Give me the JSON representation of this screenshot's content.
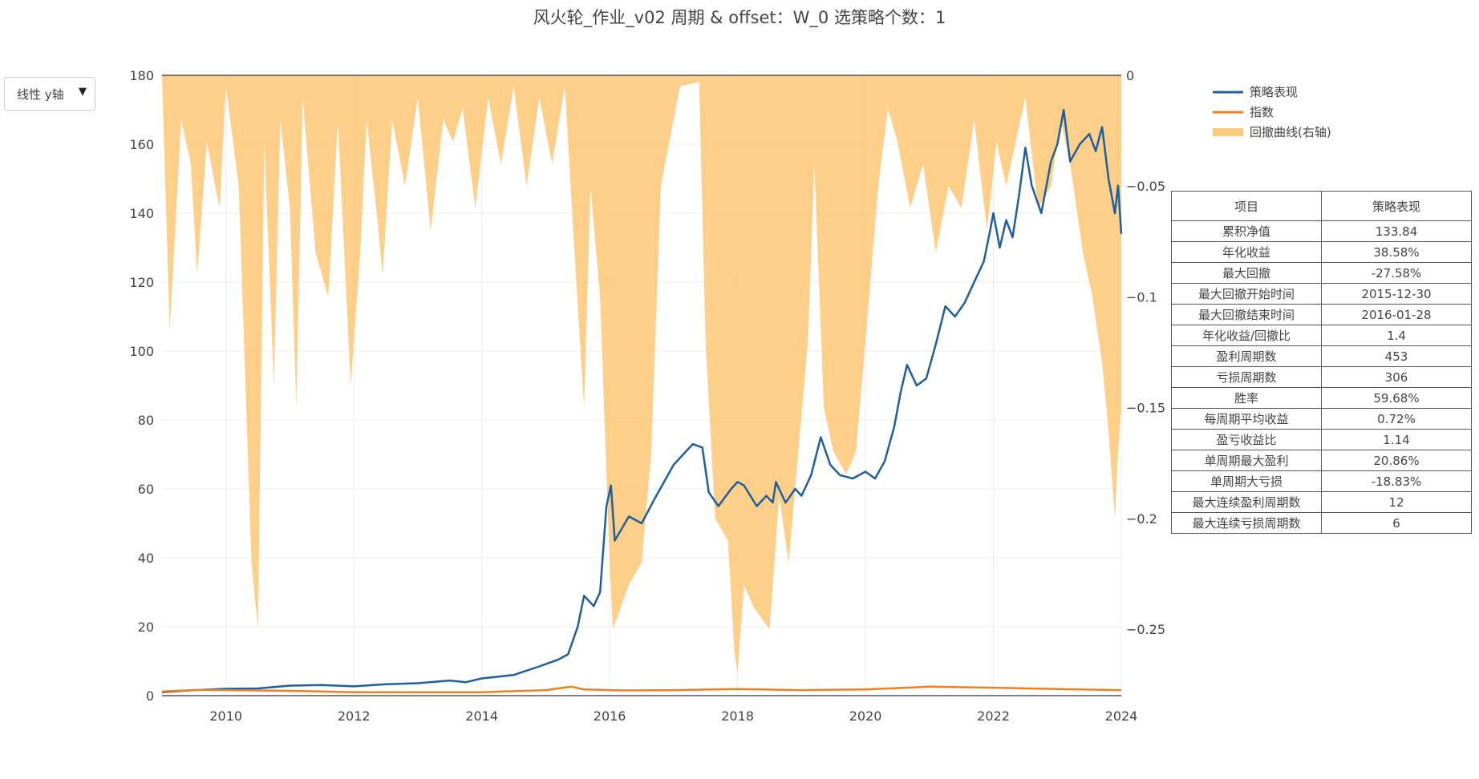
{
  "title": "风火轮_作业_v02 周期 & offset：W_0 选策略个数：1",
  "controls": {
    "yscale_label": "线性 y轴",
    "dropdown_icon": "triangle-down-icon"
  },
  "legend": {
    "items": [
      {
        "label": "策略表现",
        "color": "#1f5f9f"
      },
      {
        "label": "指数",
        "color": "#f07f20"
      },
      {
        "label": "回撤曲线(右轴)",
        "color": "#fdca7c"
      }
    ]
  },
  "stats_table": {
    "headers": [
      "项目",
      "策略表现"
    ],
    "rows": [
      [
        "累积净值",
        "133.84"
      ],
      [
        "年化收益",
        "38.58%"
      ],
      [
        "最大回撤",
        "-27.58%"
      ],
      [
        "最大回撤开始时间",
        "2015-12-30"
      ],
      [
        "最大回撤结束时间",
        "2016-01-28"
      ],
      [
        "年化收益/回撤比",
        "1.4"
      ],
      [
        "盈利周期数",
        "453"
      ],
      [
        "亏损周期数",
        "306"
      ],
      [
        "胜率",
        "59.68%"
      ],
      [
        "每周期平均收益",
        "0.72%"
      ],
      [
        "盈亏收益比",
        "1.14"
      ],
      [
        "单周期最大盈利",
        "20.86%"
      ],
      [
        "单周期大亏损",
        "-18.83%"
      ],
      [
        "最大连续盈利周期数",
        "12"
      ],
      [
        "最大连续亏损周期数",
        "6"
      ]
    ]
  },
  "chart_data": {
    "type": "line",
    "xlim": [
      2009.0,
      2024.0
    ],
    "x_ticks": [
      "2010",
      "2012",
      "2014",
      "2016",
      "2018",
      "2020",
      "2022",
      "2024"
    ],
    "ylim_left": [
      0,
      180
    ],
    "y_ticks_left": [
      "0",
      "20",
      "40",
      "60",
      "80",
      "100",
      "120",
      "140",
      "160",
      "180"
    ],
    "ylim_right": [
      -0.28,
      0
    ],
    "y_ticks_right": [
      "0",
      "−0.05",
      "−0.1",
      "−0.15",
      "−0.2",
      "−0.25"
    ],
    "grid": true,
    "legend_position": "top-right",
    "series": [
      {
        "name": "策略表现",
        "axis": "left",
        "color": "#1f5f9f",
        "points": [
          [
            2009.0,
            1.0
          ],
          [
            2009.5,
            1.6
          ],
          [
            2010.0,
            2.0
          ],
          [
            2010.5,
            2.1
          ],
          [
            2011.0,
            2.9
          ],
          [
            2011.5,
            3.1
          ],
          [
            2012.0,
            2.7
          ],
          [
            2012.5,
            3.3
          ],
          [
            2013.0,
            3.6
          ],
          [
            2013.5,
            4.4
          ],
          [
            2013.75,
            3.9
          ],
          [
            2014.0,
            5.0
          ],
          [
            2014.5,
            6.0
          ],
          [
            2014.9,
            8.5
          ],
          [
            2015.2,
            10.5
          ],
          [
            2015.35,
            12.0
          ],
          [
            2015.5,
            20.0
          ],
          [
            2015.6,
            29.0
          ],
          [
            2015.75,
            26.0
          ],
          [
            2015.85,
            30.0
          ],
          [
            2015.95,
            55.0
          ],
          [
            2016.02,
            61.0
          ],
          [
            2016.08,
            45.0
          ],
          [
            2016.3,
            52.0
          ],
          [
            2016.5,
            50.0
          ],
          [
            2016.7,
            57.0
          ],
          [
            2016.85,
            62.0
          ],
          [
            2017.0,
            67.0
          ],
          [
            2017.2,
            71.0
          ],
          [
            2017.3,
            73.0
          ],
          [
            2017.45,
            72.0
          ],
          [
            2017.55,
            59.0
          ],
          [
            2017.7,
            55.0
          ],
          [
            2017.9,
            60.0
          ],
          [
            2018.0,
            62.0
          ],
          [
            2018.1,
            61.0
          ],
          [
            2018.3,
            55.0
          ],
          [
            2018.45,
            58.0
          ],
          [
            2018.55,
            56.0
          ],
          [
            2018.6,
            62.0
          ],
          [
            2018.75,
            56.0
          ],
          [
            2018.9,
            60.0
          ],
          [
            2019.0,
            58.0
          ],
          [
            2019.15,
            64.0
          ],
          [
            2019.3,
            75.0
          ],
          [
            2019.45,
            67.0
          ],
          [
            2019.6,
            64.0
          ],
          [
            2019.8,
            63.0
          ],
          [
            2020.0,
            65.0
          ],
          [
            2020.15,
            63.0
          ],
          [
            2020.3,
            68.0
          ],
          [
            2020.45,
            78.0
          ],
          [
            2020.55,
            88.0
          ],
          [
            2020.65,
            96.0
          ],
          [
            2020.8,
            90.0
          ],
          [
            2020.95,
            92.0
          ],
          [
            2021.1,
            102.0
          ],
          [
            2021.25,
            113.0
          ],
          [
            2021.4,
            110.0
          ],
          [
            2021.55,
            114.0
          ],
          [
            2021.7,
            120.0
          ],
          [
            2021.85,
            126.0
          ],
          [
            2021.95,
            135.0
          ],
          [
            2022.0,
            140.0
          ],
          [
            2022.1,
            130.0
          ],
          [
            2022.2,
            138.0
          ],
          [
            2022.3,
            133.0
          ],
          [
            2022.4,
            145.0
          ],
          [
            2022.5,
            159.0
          ],
          [
            2022.6,
            148.0
          ],
          [
            2022.75,
            140.0
          ],
          [
            2022.9,
            155.0
          ],
          [
            2023.0,
            160.0
          ],
          [
            2023.1,
            170.0
          ],
          [
            2023.2,
            155.0
          ],
          [
            2023.35,
            160.0
          ],
          [
            2023.5,
            163.0
          ],
          [
            2023.6,
            158.0
          ],
          [
            2023.7,
            165.0
          ],
          [
            2023.8,
            150.0
          ],
          [
            2023.9,
            140.0
          ],
          [
            2023.95,
            148.0
          ],
          [
            2024.0,
            134.0
          ]
        ]
      },
      {
        "name": "指数",
        "axis": "left",
        "color": "#f07f20",
        "points": [
          [
            2009.0,
            1.2
          ],
          [
            2009.6,
            1.7
          ],
          [
            2010.5,
            1.5
          ],
          [
            2011.0,
            1.4
          ],
          [
            2012.0,
            1.0
          ],
          [
            2013.0,
            1.0
          ],
          [
            2014.0,
            1.0
          ],
          [
            2015.0,
            1.6
          ],
          [
            2015.4,
            2.6
          ],
          [
            2015.6,
            1.8
          ],
          [
            2016.2,
            1.5
          ],
          [
            2017.0,
            1.6
          ],
          [
            2018.0,
            1.9
          ],
          [
            2019.0,
            1.6
          ],
          [
            2020.0,
            1.8
          ],
          [
            2021.0,
            2.6
          ],
          [
            2022.0,
            2.3
          ],
          [
            2023.0,
            1.9
          ],
          [
            2024.0,
            1.6
          ]
        ]
      },
      {
        "name": "回撤曲线(右轴)",
        "axis": "right",
        "color": "#fdca7c",
        "fill": "tozeroy",
        "points": [
          [
            2009.0,
            0
          ],
          [
            2009.12,
            -0.115
          ],
          [
            2009.3,
            -0.02
          ],
          [
            2009.45,
            -0.04
          ],
          [
            2009.55,
            -0.09
          ],
          [
            2009.7,
            -0.03
          ],
          [
            2009.9,
            -0.06
          ],
          [
            2010.0,
            -0.005
          ],
          [
            2010.2,
            -0.05
          ],
          [
            2010.4,
            -0.22
          ],
          [
            2010.5,
            -0.25
          ],
          [
            2010.6,
            -0.03
          ],
          [
            2010.75,
            -0.14
          ],
          [
            2010.85,
            -0.02
          ],
          [
            2011.0,
            -0.06
          ],
          [
            2011.1,
            -0.15
          ],
          [
            2011.2,
            -0.01
          ],
          [
            2011.4,
            -0.08
          ],
          [
            2011.6,
            -0.1
          ],
          [
            2011.75,
            -0.02
          ],
          [
            2011.95,
            -0.14
          ],
          [
            2012.1,
            -0.08
          ],
          [
            2012.2,
            -0.02
          ],
          [
            2012.35,
            -0.06
          ],
          [
            2012.45,
            -0.09
          ],
          [
            2012.6,
            -0.02
          ],
          [
            2012.8,
            -0.05
          ],
          [
            2013.0,
            -0.01
          ],
          [
            2013.2,
            -0.07
          ],
          [
            2013.4,
            -0.02
          ],
          [
            2013.55,
            -0.03
          ],
          [
            2013.7,
            -0.015
          ],
          [
            2013.9,
            -0.06
          ],
          [
            2014.1,
            -0.01
          ],
          [
            2014.3,
            -0.04
          ],
          [
            2014.5,
            -0.005
          ],
          [
            2014.7,
            -0.05
          ],
          [
            2014.9,
            -0.01
          ],
          [
            2015.1,
            -0.04
          ],
          [
            2015.3,
            -0.005
          ],
          [
            2015.45,
            -0.08
          ],
          [
            2015.6,
            -0.15
          ],
          [
            2015.7,
            -0.05
          ],
          [
            2015.85,
            -0.1
          ],
          [
            2016.0,
            -0.22
          ],
          [
            2016.05,
            -0.25
          ],
          [
            2016.3,
            -0.23
          ],
          [
            2016.5,
            -0.22
          ],
          [
            2016.65,
            -0.17
          ],
          [
            2016.8,
            -0.05
          ],
          [
            2017.0,
            -0.02
          ],
          [
            2017.1,
            -0.005
          ],
          [
            2017.4,
            -0.003
          ],
          [
            2017.5,
            -0.12
          ],
          [
            2017.65,
            -0.2
          ],
          [
            2017.85,
            -0.21
          ],
          [
            2017.95,
            -0.26
          ],
          [
            2018.0,
            -0.27
          ],
          [
            2018.1,
            -0.23
          ],
          [
            2018.25,
            -0.24
          ],
          [
            2018.5,
            -0.25
          ],
          [
            2018.65,
            -0.19
          ],
          [
            2018.8,
            -0.22
          ],
          [
            2018.95,
            -0.17
          ],
          [
            2019.1,
            -0.12
          ],
          [
            2019.2,
            -0.04
          ],
          [
            2019.35,
            -0.15
          ],
          [
            2019.5,
            -0.17
          ],
          [
            2019.7,
            -0.18
          ],
          [
            2019.85,
            -0.17
          ],
          [
            2020.0,
            -0.12
          ],
          [
            2020.2,
            -0.05
          ],
          [
            2020.35,
            -0.015
          ],
          [
            2020.5,
            -0.03
          ],
          [
            2020.7,
            -0.06
          ],
          [
            2020.9,
            -0.04
          ],
          [
            2021.1,
            -0.08
          ],
          [
            2021.3,
            -0.05
          ],
          [
            2021.5,
            -0.06
          ],
          [
            2021.7,
            -0.02
          ],
          [
            2021.9,
            -0.07
          ],
          [
            2022.05,
            -0.03
          ],
          [
            2022.2,
            -0.05
          ],
          [
            2022.35,
            -0.03
          ],
          [
            2022.5,
            -0.01
          ],
          [
            2022.7,
            -0.06
          ],
          [
            2022.9,
            -0.05
          ],
          [
            2023.05,
            -0.02
          ],
          [
            2023.2,
            -0.04
          ],
          [
            2023.4,
            -0.08
          ],
          [
            2023.55,
            -0.1
          ],
          [
            2023.7,
            -0.13
          ],
          [
            2023.8,
            -0.16
          ],
          [
            2023.9,
            -0.2
          ],
          [
            2023.95,
            -0.17
          ],
          [
            2024.0,
            -0.15
          ]
        ]
      }
    ]
  }
}
